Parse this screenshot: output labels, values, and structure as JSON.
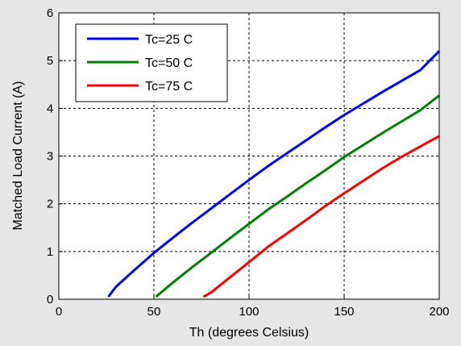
{
  "chart_data": {
    "type": "line",
    "xlabel": "Th (degrees Celsius)",
    "ylabel": "Matched Load Current (A)",
    "xlim": [
      0,
      200
    ],
    "ylim": [
      0,
      6
    ],
    "xticks": [
      0,
      50,
      100,
      150,
      200
    ],
    "yticks": [
      0,
      1,
      2,
      3,
      4,
      5,
      6
    ],
    "grid": true,
    "grid_style": "dashed",
    "legend_position": "top-left",
    "series": [
      {
        "name": "Tc=25 C",
        "color": "#0000ff",
        "x": [
          26,
          30,
          40,
          50,
          60,
          70,
          80,
          90,
          100,
          110,
          120,
          130,
          140,
          150,
          160,
          170,
          180,
          190,
          200
        ],
        "y": [
          0.05,
          0.26,
          0.62,
          0.97,
          1.29,
          1.6,
          1.9,
          2.2,
          2.5,
          2.79,
          3.06,
          3.33,
          3.6,
          3.86,
          4.1,
          4.34,
          4.57,
          4.8,
          5.2
        ]
      },
      {
        "name": "Tc=50 C",
        "color": "#008000",
        "x": [
          51,
          60,
          70,
          80,
          90,
          100,
          110,
          120,
          130,
          140,
          150,
          160,
          170,
          180,
          190,
          200
        ],
        "y": [
          0.05,
          0.35,
          0.67,
          0.97,
          1.28,
          1.58,
          1.88,
          2.15,
          2.43,
          2.7,
          2.98,
          3.23,
          3.48,
          3.72,
          3.96,
          4.27
        ]
      },
      {
        "name": "Tc=75 C",
        "color": "#ff0000",
        "x": [
          76,
          80,
          90,
          100,
          110,
          120,
          130,
          140,
          150,
          160,
          170,
          180,
          190,
          200
        ],
        "y": [
          0.05,
          0.14,
          0.46,
          0.78,
          1.1,
          1.38,
          1.66,
          1.95,
          2.22,
          2.48,
          2.74,
          2.98,
          3.2,
          3.42
        ]
      }
    ]
  }
}
